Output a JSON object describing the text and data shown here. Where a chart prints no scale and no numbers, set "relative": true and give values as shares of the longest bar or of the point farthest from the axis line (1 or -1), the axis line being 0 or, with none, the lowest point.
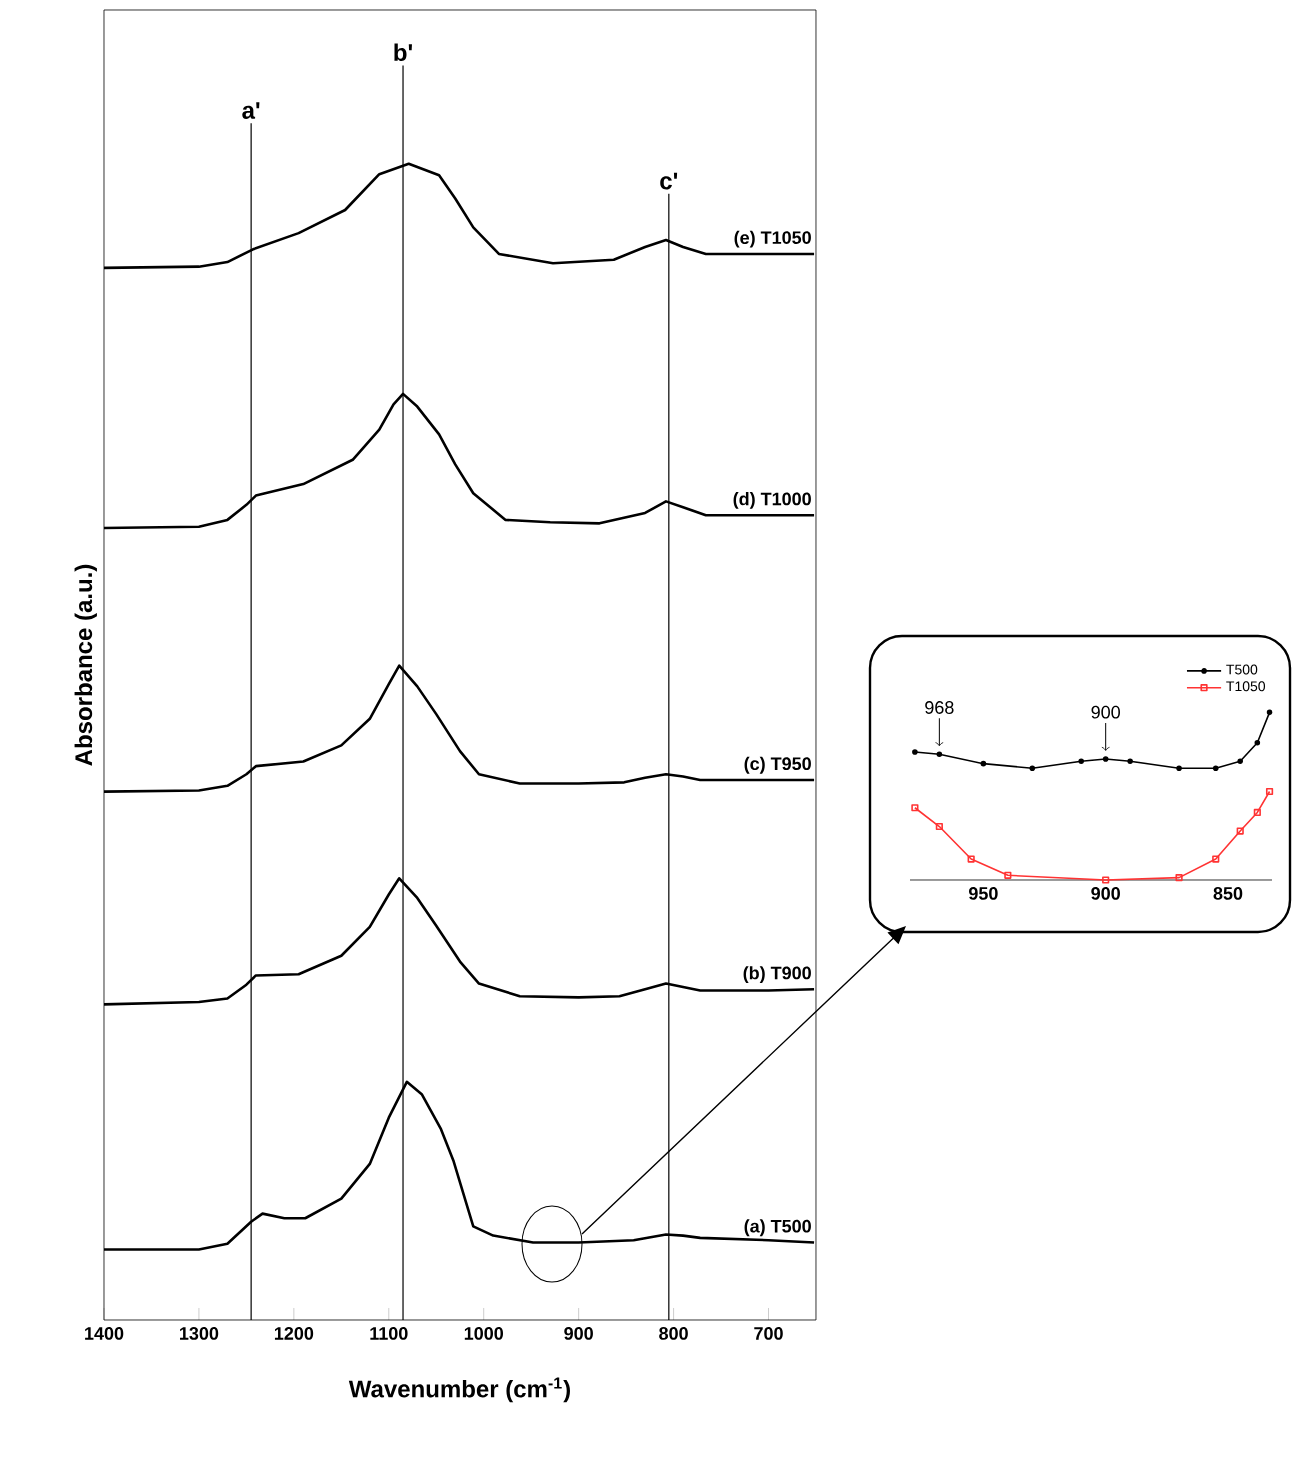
{
  "chart_data": [
    {
      "type": "line",
      "xlabel": "Wavenumber (cm$^{-1}$)",
      "ylabel": "Absorbance (a.u.)",
      "relative": true,
      "xlim": [
        1400,
        650
      ],
      "xticks": [
        1400,
        1300,
        1200,
        1100,
        1000,
        900,
        800,
        700
      ],
      "series": [
        {
          "name": "(a) T500",
          "color": "#000000",
          "x": [
            1400,
            1300,
            1270,
            1245,
            1233,
            1210,
            1188,
            1150,
            1120,
            1100,
            1081,
            1065,
            1045,
            1032,
            1011,
            990,
            948,
            900,
            842,
            808,
            790,
            772,
            700,
            652
          ],
          "values": [
            0.061,
            0.061,
            0.066,
            0.085,
            0.092,
            0.088,
            0.088,
            0.105,
            0.135,
            0.175,
            0.206,
            0.195,
            0.165,
            0.138,
            0.081,
            0.073,
            0.067,
            0.067,
            0.069,
            0.074,
            0.073,
            0.071,
            0.069,
            0.067
          ]
        },
        {
          "name": "(b) T900",
          "color": "#000000",
          "x": [
            1400,
            1300,
            1270,
            1250,
            1240,
            1195,
            1150,
            1120,
            1100,
            1089,
            1070,
            1050,
            1025,
            1005,
            962,
            900,
            857,
            830,
            808,
            790,
            772,
            700,
            652
          ],
          "values": [
            0.273,
            0.275,
            0.278,
            0.29,
            0.298,
            0.299,
            0.315,
            0.34,
            0.368,
            0.382,
            0.365,
            0.341,
            0.31,
            0.291,
            0.28,
            0.279,
            0.28,
            0.286,
            0.291,
            0.288,
            0.285,
            0.285,
            0.286
          ]
        },
        {
          "name": "(c) T950",
          "color": "#000000",
          "x": [
            1400,
            1300,
            1270,
            1250,
            1240,
            1190,
            1150,
            1120,
            1100,
            1089,
            1070,
            1050,
            1025,
            1005,
            962,
            900,
            852,
            830,
            808,
            790,
            772,
            700,
            652
          ],
          "values": [
            0.457,
            0.458,
            0.462,
            0.472,
            0.479,
            0.483,
            0.497,
            0.52,
            0.55,
            0.566,
            0.548,
            0.524,
            0.492,
            0.472,
            0.464,
            0.464,
            0.465,
            0.469,
            0.472,
            0.47,
            0.467,
            0.467,
            0.467
          ]
        },
        {
          "name": "(d) T1000",
          "color": "#000000",
          "x": [
            1400,
            1300,
            1270,
            1250,
            1240,
            1190,
            1138,
            1110,
            1095,
            1085,
            1070,
            1047,
            1030,
            1011,
            977,
            930,
            878,
            830,
            808,
            790,
            766,
            700,
            652
          ],
          "values": [
            0.685,
            0.686,
            0.692,
            0.705,
            0.713,
            0.723,
            0.744,
            0.77,
            0.792,
            0.801,
            0.79,
            0.766,
            0.74,
            0.715,
            0.692,
            0.69,
            0.689,
            0.698,
            0.708,
            0.703,
            0.696,
            0.696,
            0.696
          ]
        },
        {
          "name": "(e) T1050",
          "color": "#000000",
          "x": [
            1400,
            1300,
            1270,
            1243,
            1195,
            1146,
            1110,
            1079,
            1047,
            1030,
            1011,
            984,
            927,
            863,
            830,
            808,
            790,
            766,
            700,
            652
          ],
          "values": [
            0.91,
            0.911,
            0.915,
            0.926,
            0.94,
            0.96,
            0.991,
            1.0,
            0.99,
            0.97,
            0.945,
            0.922,
            0.914,
            0.917,
            0.928,
            0.934,
            0.928,
            0.922,
            0.922,
            0.922
          ]
        }
      ],
      "ref_lines": [
        {
          "axis": "x",
          "value": 1245,
          "label": "a'"
        },
        {
          "axis": "x",
          "value": 1085,
          "label": "b'"
        },
        {
          "axis": "x",
          "value": 805,
          "label": "c'"
        }
      ]
    },
    {
      "type": "line",
      "relative": true,
      "xlim": [
        980,
        832
      ],
      "xticks": [
        950,
        900,
        850
      ],
      "legend": "top right",
      "series": [
        {
          "name": "T500",
          "color": "#000000",
          "marker": "circle",
          "x": [
            978,
            968,
            950,
            930,
            910,
            900,
            890,
            870,
            855,
            845,
            838,
            833
          ],
          "values": [
            0.764,
            0.75,
            0.694,
            0.667,
            0.708,
            0.722,
            0.708,
            0.667,
            0.667,
            0.708,
            0.819,
            1.0
          ]
        },
        {
          "name": "T1050",
          "color": "#ff3333",
          "marker": "square",
          "x": [
            978,
            968,
            955,
            940,
            900,
            870,
            855,
            845,
            838,
            833
          ],
          "values": [
            0.431,
            0.319,
            0.125,
            0.028,
            0.0,
            0.014,
            0.125,
            0.292,
            0.403,
            0.528
          ]
        }
      ],
      "annotations": [
        {
          "text": "968",
          "x": 968,
          "y": 0.75
        },
        {
          "text": "900",
          "x": 900,
          "y": 0.722
        }
      ]
    }
  ]
}
